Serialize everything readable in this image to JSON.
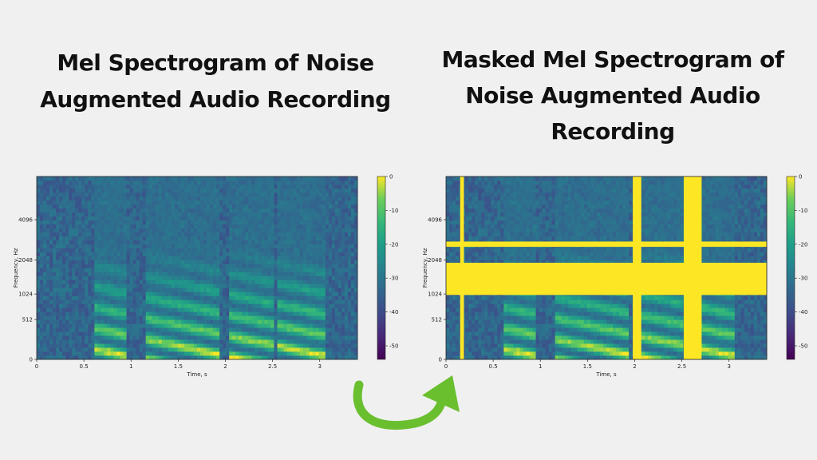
{
  "colors": {
    "mask": "#fde725",
    "arrow": "#6abf2e",
    "background": "#f0f0f0"
  },
  "chart_data": [
    {
      "type": "heatmap",
      "title": "Mel Spectrogram of Noise Augmented Audio Recording",
      "xlabel": "Time, s",
      "ylabel": "Frequency, Hz",
      "x_ticks": [
        "0",
        "0.5",
        "1",
        "1.5",
        "2",
        "2.5",
        "3"
      ],
      "x_tick_values": [
        0,
        0.5,
        1,
        1.5,
        2,
        2.5,
        3
      ],
      "xlim": [
        0,
        3.4
      ],
      "y_ticks": [
        "0",
        "512",
        "1024",
        "2048",
        "4096"
      ],
      "y_tick_values": [
        0,
        512,
        1024,
        2048,
        4096
      ],
      "ylim": [
        0,
        8000
      ],
      "y_scale": "mel",
      "colorbar": {
        "ticks": [
          "0",
          "-10",
          "-20",
          "-30",
          "-40",
          "-50"
        ],
        "tick_values": [
          0,
          -10,
          -20,
          -30,
          -40,
          -50
        ],
        "range": [
          -54,
          0
        ],
        "colormap": "viridis"
      },
      "masks": []
    },
    {
      "type": "heatmap",
      "title": "Masked Mel Spectrogram of Noise Augmented Audio Recording",
      "xlabel": "Time, s",
      "ylabel": "Frequency, Hz",
      "x_ticks": [
        "0",
        "0.5",
        "1",
        "1.5",
        "2",
        "2.5",
        "3"
      ],
      "x_tick_values": [
        0,
        0.5,
        1,
        1.5,
        2,
        2.5,
        3
      ],
      "xlim": [
        0,
        3.4
      ],
      "y_ticks": [
        "0",
        "512",
        "1024",
        "2048",
        "4096"
      ],
      "y_tick_values": [
        0,
        512,
        1024,
        2048,
        4096
      ],
      "ylim": [
        0,
        8000
      ],
      "y_scale": "mel",
      "colorbar": {
        "ticks": [
          "0",
          "-10",
          "-20",
          "-30",
          "-40",
          "-50"
        ],
        "tick_values": [
          0,
          -10,
          -20,
          -30,
          -40,
          -50
        ],
        "range": [
          -54,
          0
        ],
        "colormap": "viridis"
      },
      "masks": [
        {
          "axis": "time",
          "from": 0.15,
          "to": 0.19
        },
        {
          "axis": "time",
          "from": 1.98,
          "to": 2.07
        },
        {
          "axis": "time",
          "from": 2.52,
          "to": 2.71
        },
        {
          "axis": "frequency",
          "from": 2600,
          "to": 2850
        },
        {
          "axis": "frequency",
          "from": 1000,
          "to": 1950
        }
      ]
    }
  ],
  "titles": {
    "left": "Mel Spectrogram of Noise Augmented Audio Recording",
    "right_lines": [
      "Masked Mel Spectrogram of",
      "Noise Augmented Audio",
      "Recording"
    ]
  }
}
